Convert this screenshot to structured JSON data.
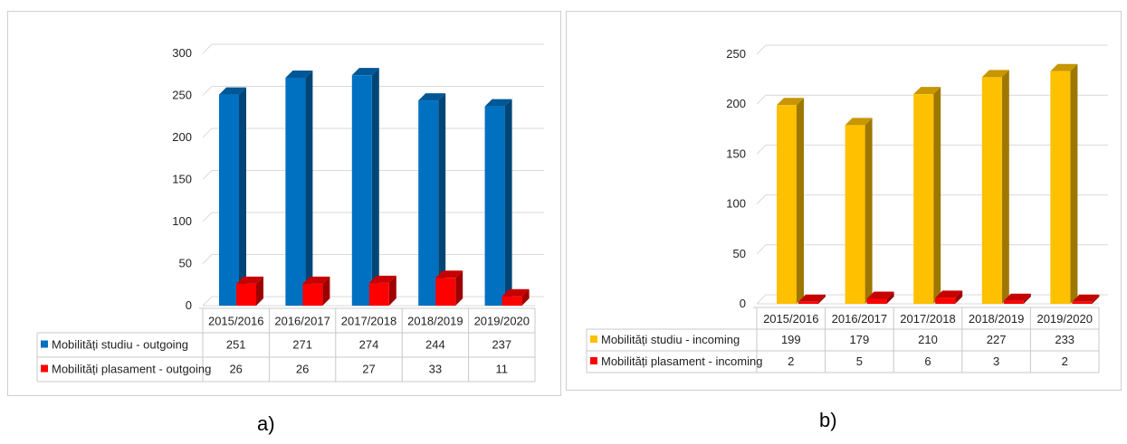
{
  "colors": {
    "blue": "#0070C0",
    "red": "#FF0000",
    "yellow": "#FFC000"
  },
  "captions": {
    "a": "a)",
    "b": "b)"
  },
  "chart_data": [
    {
      "type": "bar",
      "title": "",
      "categories": [
        "2015/2016",
        "2016/2017",
        "2017/2018",
        "2018/2019",
        "2019/2020"
      ],
      "ylim": [
        0,
        300
      ],
      "yticks": [
        0,
        50,
        100,
        150,
        200,
        250,
        300
      ],
      "grid": true,
      "legend": "data-table",
      "series": [
        {
          "name": "Mobilități studiu - outgoing",
          "color": "#0070C0",
          "values": [
            251,
            271,
            274,
            244,
            237
          ]
        },
        {
          "name": "Mobilități plasament - outgoing",
          "color": "#FF0000",
          "values": [
            26,
            26,
            27,
            33,
            11
          ]
        }
      ]
    },
    {
      "type": "bar",
      "title": "",
      "categories": [
        "2015/2016",
        "2016/2017",
        "2017/2018",
        "2018/2019",
        "2019/2020"
      ],
      "ylim": [
        0,
        250
      ],
      "yticks": [
        0,
        50,
        100,
        150,
        200,
        250
      ],
      "grid": true,
      "legend": "data-table",
      "series": [
        {
          "name": "Mobilități studiu - incoming",
          "color": "#FFC000",
          "values": [
            199,
            179,
            210,
            227,
            233
          ]
        },
        {
          "name": "Mobilități plasament - incoming",
          "color": "#FF0000",
          "values": [
            2,
            5,
            6,
            3,
            2
          ]
        }
      ]
    }
  ]
}
